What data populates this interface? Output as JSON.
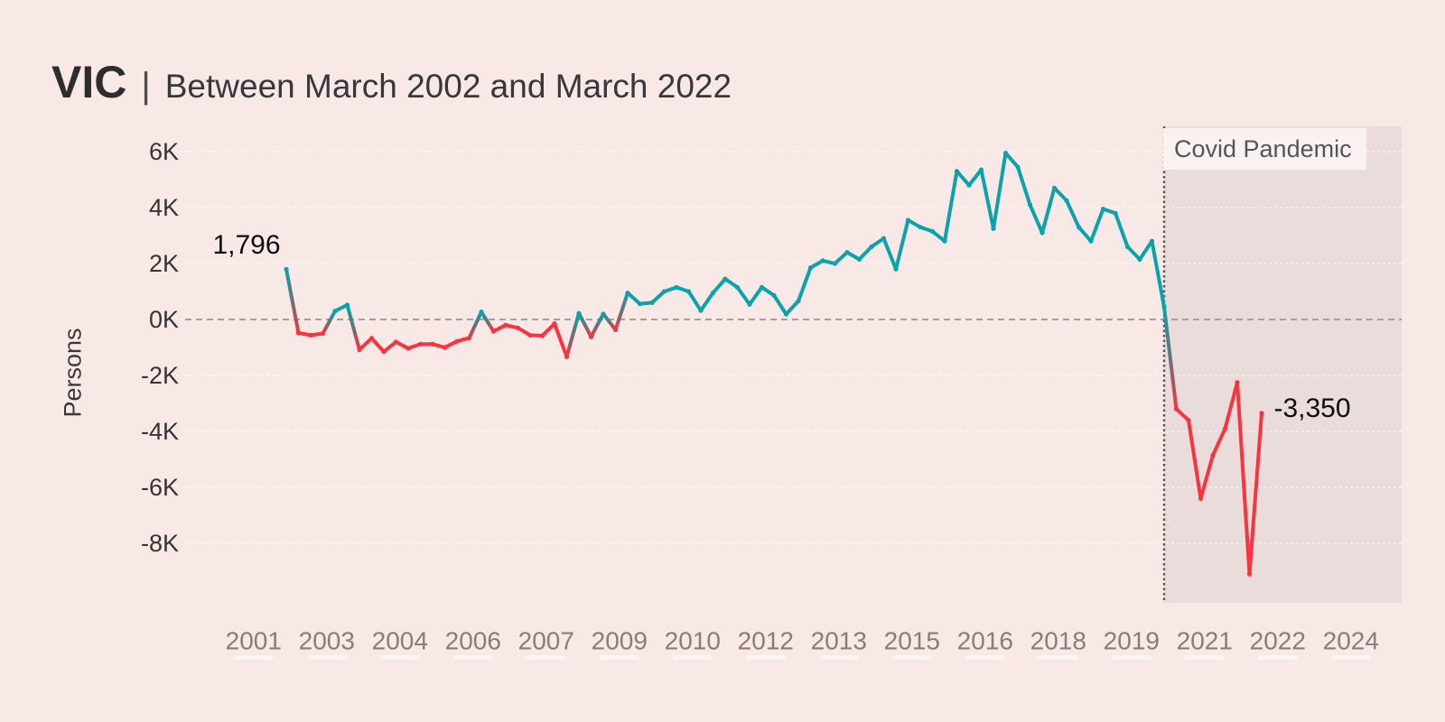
{
  "title": {
    "state": "VIC",
    "separator": "|",
    "subtitle": "Between March 2002 and March 2022"
  },
  "y_axis": {
    "label": "Persons",
    "tick_labels": [
      "6K",
      "4K",
      "2K",
      "0K",
      "-2K",
      "-4K",
      "-6K",
      "-8K"
    ],
    "tick_values": [
      6000,
      4000,
      2000,
      0,
      -2000,
      -4000,
      -6000,
      -8000
    ]
  },
  "x_axis": {
    "tick_labels": [
      "2001",
      "2003",
      "2004",
      "2006",
      "2007",
      "2009",
      "2010",
      "2012",
      "2013",
      "2015",
      "2016",
      "2018",
      "2019",
      "2021",
      "2022",
      "2024"
    ]
  },
  "annotations": {
    "start_value_label": "1,796",
    "end_value_label": "-3,350",
    "covid_region_label": "Covid Pandemic"
  },
  "colors": {
    "background": "#f8e8e6",
    "covid_region": "#e9dcda",
    "covid_label_box": "#faf2f1",
    "covid_label_text": "#555555",
    "positive": "#0ba3ab",
    "negative": "#fb333e",
    "transition_gray": "#6b7077",
    "zero_line": "#a2a2a2",
    "covid_divider": "#565656",
    "gridline": "rgba(255,255,255,0.7)",
    "x_tick_text": "#8a7c78",
    "y_tick_text": "#383434",
    "annotation_text": "#0e0e0e"
  },
  "chart_data": {
    "type": "line",
    "title": "VIC | Between March 2002 and March 2022",
    "xlabel": "",
    "ylabel": "Persons",
    "frequency": "quarterly",
    "start_period": "March 2002",
    "end_period": "March 2022",
    "first_value": 1796,
    "last_value": -3350,
    "covid_start_index": 72,
    "ylim": [
      -10100,
      6900
    ],
    "xlim_years": [
      2000.1,
      2025.1
    ],
    "grid": true,
    "zero_line": "dashed",
    "values": [
      1796,
      -480,
      -560,
      -500,
      300,
      520,
      -1080,
      -670,
      -1150,
      -800,
      -1030,
      -880,
      -880,
      -1000,
      -780,
      -660,
      270,
      -420,
      -200,
      -300,
      -560,
      -580,
      -150,
      -1330,
      220,
      -620,
      200,
      -370,
      950,
      560,
      600,
      1000,
      1150,
      1000,
      320,
      950,
      1450,
      1150,
      540,
      1150,
      860,
      190,
      660,
      1850,
      2100,
      2000,
      2400,
      2150,
      2600,
      2900,
      1800,
      3550,
      3300,
      3150,
      2800,
      5300,
      4800,
      5350,
      3250,
      5950,
      5450,
      4100,
      3100,
      4700,
      4250,
      3300,
      2800,
      3950,
      3800,
      2600,
      2150,
      2800,
      450,
      -3200,
      -3600,
      -6400,
      -4850,
      -3900,
      -2250,
      -9100,
      -3350
    ]
  }
}
